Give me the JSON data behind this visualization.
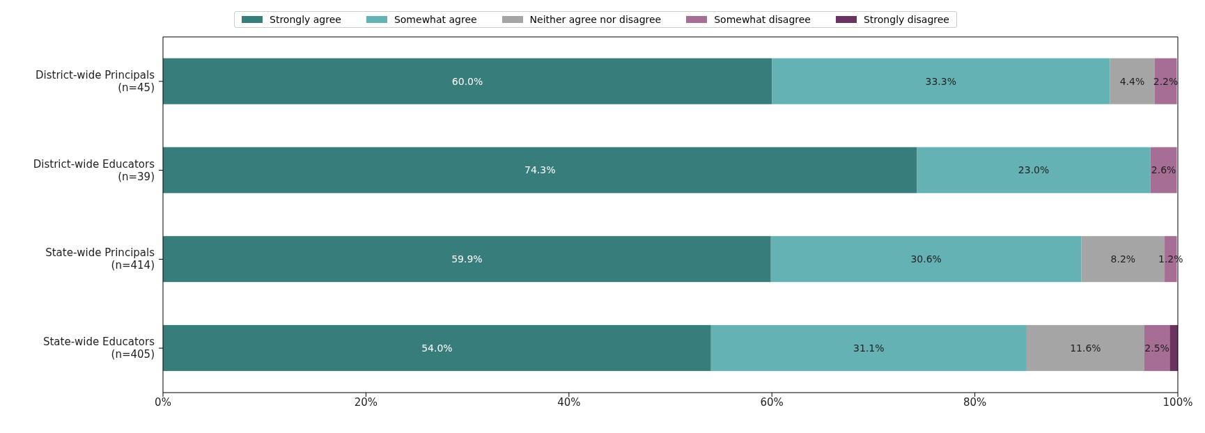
{
  "chart_data": {
    "type": "bar",
    "orientation": "horizontal",
    "stacked": true,
    "categories": [
      "District-wide Principals\n(n=45)",
      "District-wide Educators\n(n=39)",
      "State-wide Principals\n(n=414)",
      "State-wide Educators\n(n=405)"
    ],
    "series": [
      {
        "name": "Strongly agree",
        "color": "#367d7b",
        "values": [
          60.0,
          74.3,
          59.9,
          54.0
        ],
        "value_labels": [
          "60.0%",
          "74.3%",
          "59.9%",
          "54.0%"
        ]
      },
      {
        "name": "Somewhat agree",
        "color": "#64b2b3",
        "values": [
          33.3,
          23.0,
          30.6,
          31.1
        ],
        "value_labels": [
          "33.3%",
          "23.0%",
          "30.6%",
          "31.1%"
        ]
      },
      {
        "name": "Neither agree nor disagree",
        "color": "#a5a5a5",
        "values": [
          4.4,
          0,
          8.2,
          11.6
        ],
        "value_labels": [
          "4.4%",
          null,
          "8.2%",
          "11.6%"
        ]
      },
      {
        "name": "Somewhat disagree",
        "color": "#a66d95",
        "values": [
          2.2,
          2.6,
          1.2,
          2.5
        ],
        "value_labels": [
          "2.2%",
          "2.6%",
          "1.2%",
          "2.5%"
        ]
      },
      {
        "name": "Strongly disagree",
        "color": "#6b3460",
        "values": [
          0,
          0,
          0,
          0.8
        ],
        "value_labels": [
          null,
          null,
          null,
          null
        ]
      }
    ],
    "xlim": [
      0,
      100
    ],
    "xticks": [
      {
        "value": 0,
        "label": "0%"
      },
      {
        "value": 20,
        "label": "20%"
      },
      {
        "value": 40,
        "label": "40%"
      },
      {
        "value": 60,
        "label": "60%"
      },
      {
        "value": 80,
        "label": "80%"
      },
      {
        "value": 100,
        "label": "100%"
      }
    ],
    "grid": false,
    "legend": "top"
  }
}
